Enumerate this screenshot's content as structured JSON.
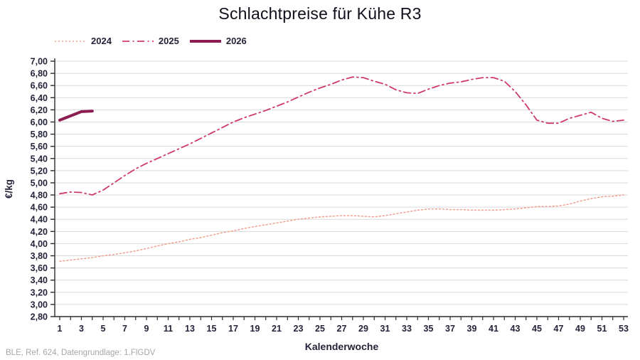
{
  "title": "Schlachtpreise für Kühe R3",
  "footer": "BLE, Ref. 624, Datengrundlage: 1.FlGDV",
  "colors": {
    "series_2024": "#f0a18f",
    "series_2025": "#cf3a6e",
    "series_2026": "#8c1d52",
    "grid": "#d9d9d9",
    "axis": "#2b2b2b",
    "tick_label": "#23233a",
    "title_text": "#10101c",
    "footer_text": "#a6a6ad"
  },
  "chart_data": {
    "type": "line",
    "title": "Schlachtpreise für Kühe R3",
    "xlabel": "Kalenderwoche",
    "ylabel": "€/kg",
    "ylim": [
      2.8,
      7.0
    ],
    "ytick_step": 0.2,
    "xlim": [
      1,
      53
    ],
    "xtick_labels_every": "odd weeks 1..53",
    "grid": "horizontal",
    "legend_position": "top-left",
    "decimal_format": "comma",
    "series": [
      {
        "name": "2024",
        "color": "#f0a18f",
        "dash": "dotted",
        "width": 1.5,
        "x_start": 1,
        "values": [
          3.71,
          3.73,
          3.75,
          3.77,
          3.8,
          3.82,
          3.85,
          3.88,
          3.92,
          3.96,
          4.0,
          4.03,
          4.07,
          4.1,
          4.14,
          4.18,
          4.21,
          4.25,
          4.28,
          4.31,
          4.34,
          4.37,
          4.4,
          4.42,
          4.44,
          4.45,
          4.46,
          4.46,
          4.45,
          4.44,
          4.46,
          4.49,
          4.52,
          4.55,
          4.57,
          4.57,
          4.56,
          4.56,
          4.55,
          4.55,
          4.55,
          4.56,
          4.57,
          4.59,
          4.61,
          4.61,
          4.62,
          4.65,
          4.7,
          4.74,
          4.77,
          4.78,
          4.8
        ]
      },
      {
        "name": "2025",
        "color": "#cf3a6e",
        "dash": "dashdot",
        "width": 1.8,
        "x_start": 1,
        "values": [
          4.82,
          4.85,
          4.84,
          4.8,
          4.88,
          5.0,
          5.12,
          5.23,
          5.32,
          5.4,
          5.48,
          5.56,
          5.64,
          5.73,
          5.82,
          5.91,
          6.0,
          6.07,
          6.13,
          6.19,
          6.26,
          6.33,
          6.41,
          6.49,
          6.56,
          6.62,
          6.69,
          6.74,
          6.73,
          6.67,
          6.62,
          6.53,
          6.48,
          6.47,
          6.54,
          6.6,
          6.64,
          6.66,
          6.7,
          6.73,
          6.73,
          6.67,
          6.5,
          6.28,
          6.03,
          5.98,
          5.98,
          6.06,
          6.11,
          6.16,
          6.06,
          6.01,
          6.03
        ]
      },
      {
        "name": "2026",
        "color": "#8c1d52",
        "dash": "solid",
        "width": 4,
        "x_start": 1,
        "values": [
          6.03,
          6.1,
          6.17,
          6.18
        ]
      }
    ]
  }
}
